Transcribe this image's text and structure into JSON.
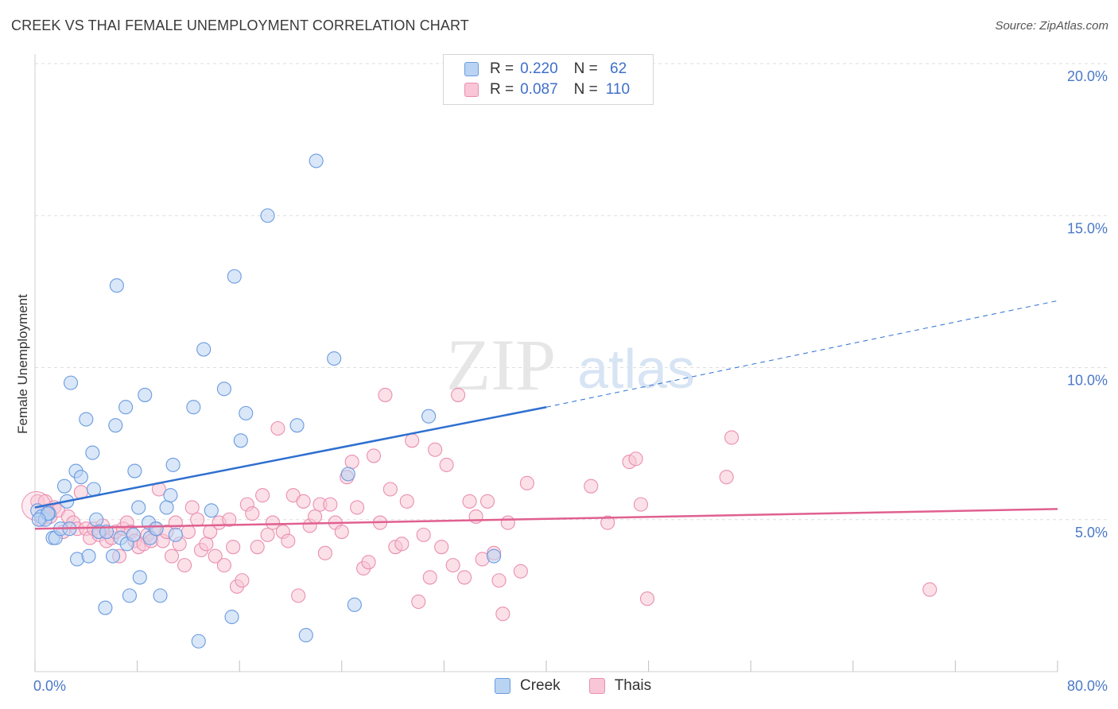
{
  "title": "CREEK VS THAI FEMALE UNEMPLOYMENT CORRELATION CHART",
  "source": "Source: ZipAtlas.com",
  "watermark": {
    "zip": "ZIP",
    "atlas": "atlas"
  },
  "colors": {
    "creek_fill": "#b9d3f3",
    "creek_stroke": "#6a9be0",
    "creek_line": "#2e6fd0",
    "thai_fill": "#f8c6d6",
    "thai_stroke": "#ea8fb0",
    "thai_line": "#e0608f",
    "tick": "#4a78c8",
    "grid": "#dddddd"
  },
  "legend": {
    "rows": [
      {
        "r_label": "R =",
        "r_value": "0.220",
        "n_label": "N =",
        "n_value": " 62"
      },
      {
        "r_label": "R =",
        "r_value": "0.087",
        "n_label": "N =",
        "n_value": "110"
      }
    ]
  },
  "chart_data": {
    "type": "scatter",
    "title": "CREEK VS THAI FEMALE UNEMPLOYMENT CORRELATION CHART",
    "xlabel": "",
    "ylabel": "Female Unemployment",
    "xlim": [
      0,
      80
    ],
    "ylim": [
      0,
      20
    ],
    "x_tick_labels": [
      "0.0%",
      "80.0%"
    ],
    "y_ticks": [
      5,
      10,
      15,
      20
    ],
    "y_tick_labels": [
      "5.0%",
      "10.0%",
      "15.0%",
      "20.0%"
    ],
    "grid": true,
    "legend_placement": "top-center",
    "series": [
      {
        "name": "Creek",
        "R": 0.22,
        "N": 62,
        "trend": {
          "x0": 0,
          "y0": 5.4,
          "x1": 40,
          "y1": 8.7,
          "dashed_to_x": 80,
          "dashed_to_y": 12.2
        },
        "points": [
          [
            0.2,
            5.3
          ],
          [
            0.5,
            5.1
          ],
          [
            0.8,
            5.0
          ],
          [
            1.1,
            5.2
          ],
          [
            1.4,
            4.4
          ],
          [
            1.6,
            4.4
          ],
          [
            2.0,
            4.7
          ],
          [
            2.3,
            6.1
          ],
          [
            2.5,
            5.6
          ],
          [
            2.7,
            4.7
          ],
          [
            2.8,
            9.5
          ],
          [
            3.2,
            6.6
          ],
          [
            3.3,
            3.7
          ],
          [
            3.6,
            6.4
          ],
          [
            4.0,
            8.3
          ],
          [
            4.2,
            3.8
          ],
          [
            4.5,
            7.2
          ],
          [
            4.6,
            6.0
          ],
          [
            4.8,
            5.0
          ],
          [
            5.0,
            4.6
          ],
          [
            5.5,
            2.1
          ],
          [
            5.6,
            4.6
          ],
          [
            6.1,
            3.8
          ],
          [
            6.3,
            8.1
          ],
          [
            6.4,
            12.7
          ],
          [
            6.7,
            4.4
          ],
          [
            7.1,
            8.7
          ],
          [
            7.2,
            4.2
          ],
          [
            7.4,
            2.5
          ],
          [
            7.7,
            4.5
          ],
          [
            7.8,
            6.6
          ],
          [
            8.1,
            5.4
          ],
          [
            8.2,
            3.1
          ],
          [
            8.6,
            9.1
          ],
          [
            8.9,
            4.9
          ],
          [
            9.0,
            4.4
          ],
          [
            9.5,
            4.7
          ],
          [
            9.8,
            2.5
          ],
          [
            10.3,
            5.4
          ],
          [
            10.6,
            5.8
          ],
          [
            10.8,
            6.8
          ],
          [
            11.0,
            4.5
          ],
          [
            12.4,
            8.7
          ],
          [
            12.8,
            1.0
          ],
          [
            13.2,
            10.6
          ],
          [
            13.8,
            5.3
          ],
          [
            14.8,
            9.3
          ],
          [
            15.4,
            1.8
          ],
          [
            15.6,
            13.0
          ],
          [
            16.1,
            7.6
          ],
          [
            16.5,
            8.5
          ],
          [
            18.2,
            15.0
          ],
          [
            20.5,
            8.1
          ],
          [
            21.2,
            1.2
          ],
          [
            22.0,
            16.8
          ],
          [
            23.4,
            10.3
          ],
          [
            24.5,
            6.5
          ],
          [
            25.0,
            2.2
          ],
          [
            30.8,
            8.4
          ],
          [
            35.9,
            3.8
          ],
          [
            1.0,
            5.2
          ],
          [
            0.3,
            5.0
          ]
        ]
      },
      {
        "name": "Thais",
        "R": 0.087,
        "N": 110,
        "trend": {
          "x0": 0,
          "y0": 4.7,
          "x1": 80,
          "y1": 5.35
        },
        "points": [
          [
            0.2,
            5.6
          ],
          [
            0.5,
            5.0
          ],
          [
            0.8,
            5.6
          ],
          [
            1.0,
            5.3
          ],
          [
            1.2,
            5.1
          ],
          [
            1.5,
            5.4
          ],
          [
            1.8,
            5.3
          ],
          [
            2.2,
            4.6
          ],
          [
            2.6,
            5.1
          ],
          [
            3.0,
            4.9
          ],
          [
            3.3,
            4.7
          ],
          [
            3.6,
            5.9
          ],
          [
            4.0,
            4.7
          ],
          [
            4.3,
            4.4
          ],
          [
            4.6,
            4.7
          ],
          [
            5.0,
            4.5
          ],
          [
            5.3,
            4.8
          ],
          [
            5.6,
            4.3
          ],
          [
            6.0,
            4.4
          ],
          [
            6.3,
            4.6
          ],
          [
            6.6,
            3.8
          ],
          [
            6.9,
            4.7
          ],
          [
            7.2,
            4.9
          ],
          [
            7.5,
            4.6
          ],
          [
            7.8,
            4.3
          ],
          [
            8.1,
            4.1
          ],
          [
            8.5,
            4.2
          ],
          [
            8.8,
            4.5
          ],
          [
            9.1,
            4.3
          ],
          [
            9.4,
            4.7
          ],
          [
            9.7,
            6.0
          ],
          [
            10.0,
            4.3
          ],
          [
            10.3,
            4.6
          ],
          [
            10.7,
            3.8
          ],
          [
            11.0,
            4.9
          ],
          [
            11.3,
            4.2
          ],
          [
            11.7,
            3.5
          ],
          [
            12.0,
            4.6
          ],
          [
            12.3,
            5.4
          ],
          [
            12.7,
            5.0
          ],
          [
            13.0,
            4.0
          ],
          [
            13.4,
            4.2
          ],
          [
            13.7,
            4.6
          ],
          [
            14.1,
            3.8
          ],
          [
            14.4,
            4.9
          ],
          [
            14.8,
            3.5
          ],
          [
            15.2,
            5.0
          ],
          [
            15.5,
            4.1
          ],
          [
            15.8,
            2.8
          ],
          [
            16.2,
            3.0
          ],
          [
            16.6,
            5.5
          ],
          [
            17.0,
            5.2
          ],
          [
            17.4,
            4.1
          ],
          [
            17.8,
            5.8
          ],
          [
            18.2,
            4.5
          ],
          [
            18.6,
            4.9
          ],
          [
            19.0,
            8.0
          ],
          [
            19.4,
            4.6
          ],
          [
            19.8,
            4.3
          ],
          [
            20.2,
            5.8
          ],
          [
            20.6,
            2.5
          ],
          [
            21.0,
            5.6
          ],
          [
            21.5,
            4.8
          ],
          [
            21.9,
            5.1
          ],
          [
            22.3,
            5.5
          ],
          [
            22.7,
            3.9
          ],
          [
            23.1,
            5.5
          ],
          [
            23.5,
            4.9
          ],
          [
            24.0,
            4.6
          ],
          [
            24.4,
            6.4
          ],
          [
            24.8,
            6.9
          ],
          [
            25.2,
            5.4
          ],
          [
            25.7,
            3.4
          ],
          [
            26.1,
            3.6
          ],
          [
            26.5,
            7.1
          ],
          [
            27.0,
            4.9
          ],
          [
            27.4,
            9.1
          ],
          [
            27.8,
            6.0
          ],
          [
            28.2,
            4.1
          ],
          [
            28.7,
            4.2
          ],
          [
            29.1,
            5.6
          ],
          [
            29.5,
            7.6
          ],
          [
            30.0,
            2.3
          ],
          [
            30.4,
            4.5
          ],
          [
            30.9,
            3.1
          ],
          [
            31.3,
            7.3
          ],
          [
            31.8,
            4.1
          ],
          [
            32.2,
            6.8
          ],
          [
            32.7,
            3.5
          ],
          [
            33.1,
            9.1
          ],
          [
            33.6,
            3.1
          ],
          [
            34.0,
            5.6
          ],
          [
            34.5,
            5.1
          ],
          [
            35.0,
            3.7
          ],
          [
            35.4,
            5.6
          ],
          [
            35.9,
            3.9
          ],
          [
            36.3,
            3.0
          ],
          [
            36.6,
            1.9
          ],
          [
            37.0,
            4.9
          ],
          [
            38.0,
            3.3
          ],
          [
            38.5,
            6.2
          ],
          [
            43.5,
            6.1
          ],
          [
            44.8,
            4.9
          ],
          [
            46.5,
            6.9
          ],
          [
            47.0,
            7.0
          ],
          [
            47.4,
            5.5
          ],
          [
            47.9,
            2.4
          ],
          [
            54.5,
            7.7
          ],
          [
            54.1,
            6.4
          ],
          [
            70.0,
            2.7
          ]
        ]
      }
    ]
  },
  "bottom_legend": [
    {
      "label": "Creek"
    },
    {
      "label": "Thais"
    }
  ]
}
